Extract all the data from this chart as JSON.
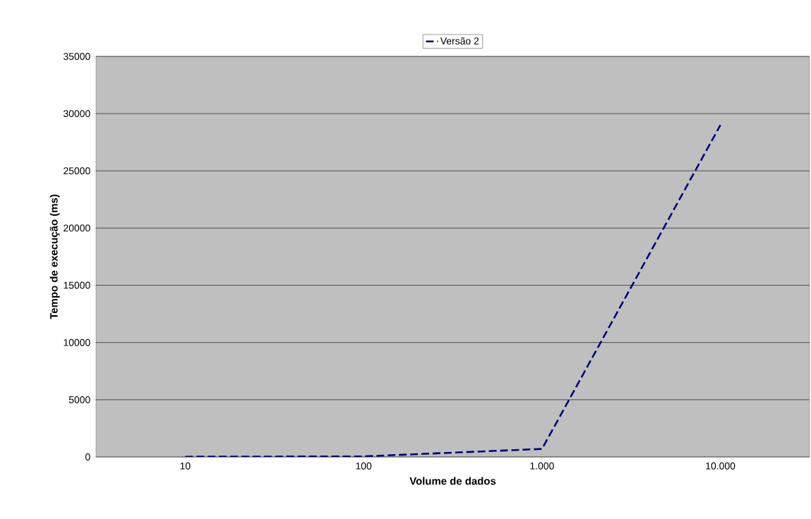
{
  "chart_data": {
    "type": "line",
    "xlabel": "Volume de dados",
    "ylabel": "Tempo de execução (ms)",
    "categories": [
      "10",
      "100",
      "1.000",
      "10.000"
    ],
    "series": [
      {
        "name": "Versão 2",
        "color": "#000080",
        "values": [
          20,
          50,
          700,
          29000
        ],
        "line_style": "dashed"
      }
    ],
    "ylim": [
      0,
      35000
    ],
    "yticks": [
      0,
      5000,
      10000,
      15000,
      20000,
      25000,
      30000,
      35000
    ],
    "grid": "y",
    "legend": "top",
    "marker": "none"
  }
}
